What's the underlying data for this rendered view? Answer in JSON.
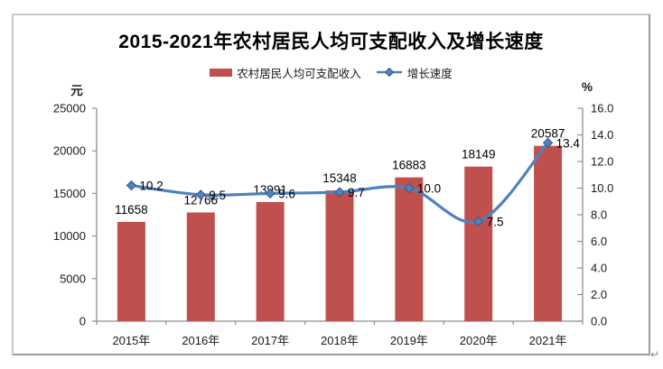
{
  "window": {
    "return_mark": "↵"
  },
  "chart": {
    "title": "2015-2021年农村居民人均可支配收入及增长速度",
    "left_unit": "元",
    "right_unit": "%",
    "legend": {
      "bar_label": "农村居民人均可支配收入",
      "line_label": "增长速度"
    },
    "colors": {
      "bar": "#C0504D",
      "line": "#4F81BD",
      "marker_border": "#36598C",
      "axis": "#8E8E8E",
      "tick_text": "#1A1A1A",
      "value_text": "#000000"
    }
  },
  "chart_data": {
    "type": "bar+line",
    "title": "2015-2021年农村居民人均可支配收入及增长速度",
    "categories": [
      "2015年",
      "2016年",
      "2017年",
      "2018年",
      "2019年",
      "2020年",
      "2021年"
    ],
    "series": [
      {
        "name": "农村居民人均可支配收入",
        "type": "bar",
        "axis": "left",
        "color": "#C0504D",
        "values": [
          11658,
          12766,
          13991,
          15348,
          16883,
          18149,
          20587
        ]
      },
      {
        "name": "增长速度",
        "type": "line",
        "axis": "right",
        "color": "#4F81BD",
        "values": [
          10.2,
          9.5,
          9.6,
          9.7,
          10.0,
          7.5,
          13.4
        ]
      }
    ],
    "left_axis": {
      "unit": "元",
      "min": 0,
      "max": 25000,
      "step": 5000,
      "ticks_top_to_bottom": [
        "25000",
        "20000",
        "15000",
        "10000",
        "5000",
        "0"
      ]
    },
    "right_axis": {
      "unit": "%",
      "min": 0,
      "max": 16,
      "step": 2,
      "ticks_top_to_bottom": [
        "16.0",
        "14.0",
        "12.0",
        "10.0",
        "8.0",
        "6.0",
        "4.0",
        "2.0",
        "0.0"
      ]
    },
    "grid": "off",
    "legend_position": "top",
    "line_style": "smooth",
    "marker": "diamond",
    "data_labels": "on"
  }
}
